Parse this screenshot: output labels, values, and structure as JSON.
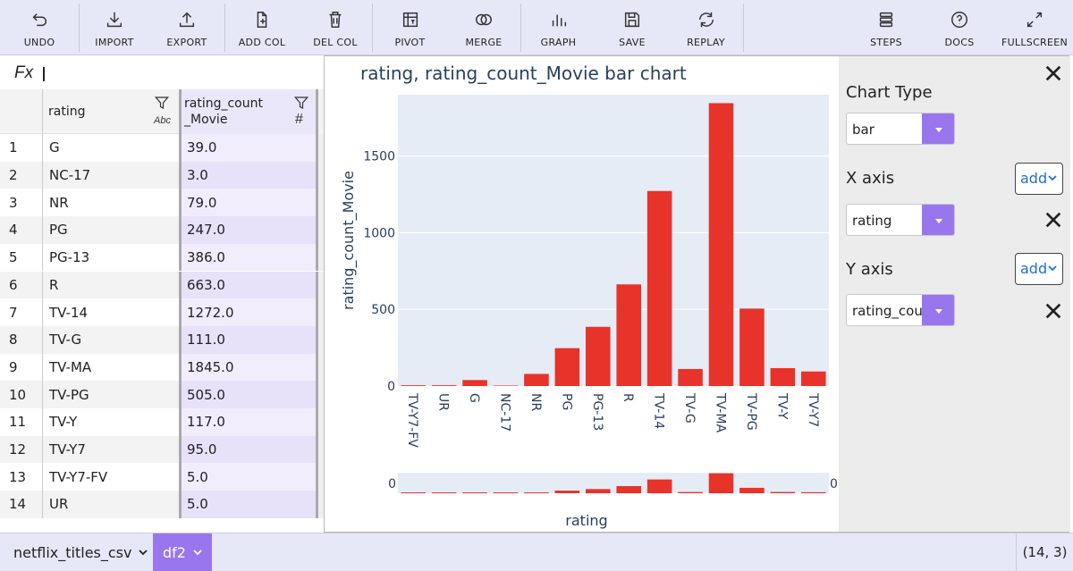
{
  "toolbar": {
    "undo": "UNDO",
    "import": "IMPORT",
    "export": "EXPORT",
    "add_col": "ADD COL",
    "del_col": "DEL COL",
    "pivot": "PIVOT",
    "merge": "MERGE",
    "graph": "GRAPH",
    "save": "SAVE",
    "replay": "REPLAY",
    "steps": "STEPS",
    "docs": "DOCS",
    "fullscreen": "FULLSCREEN"
  },
  "formula_bar": {
    "label": "Fx",
    "value": ""
  },
  "grid": {
    "columns": [
      {
        "name": "rating",
        "type_tag": "Abc"
      },
      {
        "name": "rating_count _Movie",
        "name_line1": "rating_count",
        "name_line2": "_Movie",
        "type_tag": "#"
      }
    ],
    "rows": [
      {
        "index": "1",
        "rating": "G",
        "count": "39.0"
      },
      {
        "index": "2",
        "rating": "NC-17",
        "count": "3.0"
      },
      {
        "index": "3",
        "rating": "NR",
        "count": "79.0"
      },
      {
        "index": "4",
        "rating": "PG",
        "count": "247.0"
      },
      {
        "index": "5",
        "rating": "PG-13",
        "count": "386.0"
      },
      {
        "index": "6",
        "rating": "R",
        "count": "663.0"
      },
      {
        "index": "7",
        "rating": "TV-14",
        "count": "1272.0"
      },
      {
        "index": "8",
        "rating": "TV-G",
        "count": "111.0"
      },
      {
        "index": "9",
        "rating": "TV-MA",
        "count": "1845.0"
      },
      {
        "index": "10",
        "rating": "TV-PG",
        "count": "505.0"
      },
      {
        "index": "11",
        "rating": "TV-Y",
        "count": "117.0"
      },
      {
        "index": "12",
        "rating": "TV-Y7",
        "count": "95.0"
      },
      {
        "index": "13",
        "rating": "TV-Y7-FV",
        "count": "5.0"
      },
      {
        "index": "14",
        "rating": "UR",
        "count": "5.0"
      }
    ]
  },
  "chart_panel": {
    "chart_type_label": "Chart Type",
    "chart_type_value": "bar",
    "x_axis_label": "X axis",
    "x_axis_value": "rating",
    "y_axis_label": "Y axis",
    "y_axis_value": "rating_count_Movie",
    "add_label": "add"
  },
  "chart_data": {
    "type": "bar",
    "title": "rating, rating_count_Movie bar chart",
    "xlabel": "rating",
    "ylabel": "rating_count_Movie",
    "categories": [
      "TV-Y7-FV",
      "UR",
      "G",
      "NC-17",
      "NR",
      "PG",
      "PG-13",
      "R",
      "TV-14",
      "TV-G",
      "TV-MA",
      "TV-PG",
      "TV-Y",
      "TV-Y7"
    ],
    "values": [
      5,
      5,
      39,
      3,
      79,
      247,
      386,
      663,
      1272,
      111,
      1845,
      505,
      117,
      95
    ],
    "yticks": [
      0,
      500,
      1000,
      1500
    ],
    "ylim": [
      0,
      1900
    ],
    "bar_color": "#e8332a",
    "plot_bg": "#e5ecf6",
    "range_slider_ticks": [
      "0",
      "0"
    ]
  },
  "bottom_bar": {
    "tab1": "netflix_titles_csv",
    "tab2": "df2",
    "dims": "(14, 3)"
  },
  "colors": {
    "accent": "#9a76ee",
    "toolbar_bg": "#e6e8f8",
    "link": "#1f6fd1"
  }
}
